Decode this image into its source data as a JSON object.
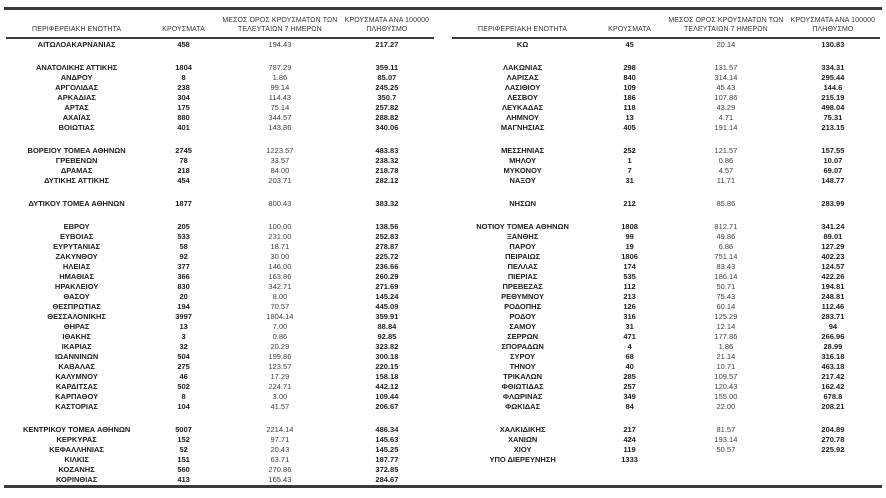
{
  "page": {
    "background": "#ffffff",
    "rule_color": "#3a3a3a",
    "bold_text_color": "#1e1e1e",
    "regular_text_color": "#3d3d3d"
  },
  "headers": [
    "ΠΕΡΙΦΕΡΕΙΑΚΗ ΕΝΟΤΗΤΑ",
    "ΚΡΟΥΣΜΑΤΑ",
    "ΜΕΣΟΣ ΟΡΟΣ ΚΡΟΥΣΜΑΤΩΝ ΤΩΝ ΤΕΛΕΥΤΑΙΩΝ 7 ΗΜΕΡΩΝ",
    "ΚΡΟΥΣΜΑΤΑ ΑΝΑ 100000 ΠΛΗΘΥΣΜΟ"
  ],
  "tables": [
    {
      "rows": [
        [
          "ΑΙΤΩΛΟΑΚΑΡΝΑΝΙΑΣ",
          "458",
          "194.43",
          "217.27"
        ],
        null,
        [
          "ΑΝΑΤΟΛΙΚΗΣ ΑΤΤΙΚΗΣ",
          "1804",
          "787.29",
          "359.11"
        ],
        [
          "ΑΝΔΡΟΥ",
          "8",
          "1.86",
          "85.07"
        ],
        [
          "ΑΡΓΟΛΙΔΑΣ",
          "238",
          "99.14",
          "245.25"
        ],
        [
          "ΑΡΚΑΔΙΑΣ",
          "304",
          "114.43",
          "350.7"
        ],
        [
          "ΑΡΤΑΣ",
          "175",
          "75.14",
          "257.82"
        ],
        [
          "ΑΧΑΪΑΣ",
          "880",
          "344.57",
          "288.82"
        ],
        [
          "ΒΟΙΩΤΙΑΣ",
          "401",
          "143.86",
          "340.06"
        ],
        null,
        [
          "ΒΟΡΕΙΟΥ ΤΟΜΕΑ ΑΘΗΝΩΝ",
          "2745",
          "1223.57",
          "483.83"
        ],
        [
          "ΓΡΕΒΕΝΩΝ",
          "78",
          "33.57",
          "238.32"
        ],
        [
          "ΔΡΑΜΑΣ",
          "218",
          "84.00",
          "218.78"
        ],
        [
          "ΔΥΤΙΚΗΣ ΑΤΤΙΚΗΣ",
          "454",
          "203.71",
          "282.12"
        ],
        null,
        [
          "ΔΥΤΙΚΟΥ ΤΟΜΕΑ ΑΘΗΝΩΝ",
          "1877",
          "800.43",
          "383.32"
        ],
        null,
        [
          "ΕΒΡΟΥ",
          "205",
          "100.00",
          "138.56"
        ],
        [
          "ΕΥΒΟΙΑΣ",
          "533",
          "231.00",
          "252.83"
        ],
        [
          "ΕΥΡΥΤΑΝΙΑΣ",
          "58",
          "18.71",
          "278.87"
        ],
        [
          "ΖΑΚΥΝΘΟΥ",
          "92",
          "30.00",
          "225.72"
        ],
        [
          "ΗΛΕΙΑΣ",
          "377",
          "146.00",
          "236.66"
        ],
        [
          "ΗΜΑΘΙΑΣ",
          "366",
          "163.86",
          "260.29"
        ],
        [
          "ΗΡΑΚΛΕΙΟΥ",
          "830",
          "342.71",
          "271.69"
        ],
        [
          "ΘΑΣΟΥ",
          "20",
          "8.00",
          "145.24"
        ],
        [
          "ΘΕΣΠΡΩΤΙΑΣ",
          "194",
          "70.57",
          "445.09"
        ],
        [
          "ΘΕΣΣΑΛΟΝΙΚΗΣ",
          "3997",
          "1804.14",
          "359.91"
        ],
        [
          "ΘΗΡΑΣ",
          "13",
          "7.00",
          "88.84"
        ],
        [
          "ΙΘΑΚΗΣ",
          "3",
          "0.86",
          "92.85"
        ],
        [
          "ΙΚΑΡΙΑΣ",
          "32",
          "20.29",
          "323.82"
        ],
        [
          "ΙΩΑΝΝΙΝΩΝ",
          "504",
          "199.86",
          "300.18"
        ],
        [
          "ΚΑΒΑΛΑΣ",
          "275",
          "123.57",
          "220.15"
        ],
        [
          "ΚΑΛΥΜΝΟΥ",
          "46",
          "17.29",
          "158.18"
        ],
        [
          "ΚΑΡΔΙΤΣΑΣ",
          "502",
          "224.71",
          "442.12"
        ],
        [
          "ΚΑΡΠΑΘΟΥ",
          "8",
          "3.00",
          "109.44"
        ],
        [
          "ΚΑΣΤΟΡΙΑΣ",
          "104",
          "41.57",
          "206.67"
        ],
        null,
        [
          "ΚΕΝΤΡΙΚΟΥ ΤΟΜΕΑ ΑΘΗΝΩΝ",
          "5007",
          "2214.14",
          "486.34"
        ],
        [
          "ΚΕΡΚΥΡΑΣ",
          "152",
          "97.71",
          "145.63"
        ],
        [
          "ΚΕΦΑΛΛΗΝΙΑΣ",
          "52",
          "20.43",
          "145.25"
        ],
        [
          "ΚΙΛΚΙΣ",
          "151",
          "63.71",
          "187.77"
        ],
        [
          "ΚΟΖΑΝΗΣ",
          "560",
          "270.86",
          "372.85"
        ],
        [
          "ΚΟΡΙΝΘΙΑΣ",
          "413",
          "165.43",
          "284.67"
        ]
      ]
    },
    {
      "rows": [
        [
          "ΚΩ",
          "45",
          "20.14",
          "130.83"
        ],
        null,
        [
          "ΛΑΚΩΝΙΑΣ",
          "298",
          "131.57",
          "334.31"
        ],
        [
          "ΛΑΡΙΣΑΣ",
          "840",
          "314.14",
          "295.44"
        ],
        [
          "ΛΑΣΙΘΙΟΥ",
          "109",
          "45.43",
          "144.6"
        ],
        [
          "ΛΕΣΒΟΥ",
          "186",
          "107.86",
          "215.19"
        ],
        [
          "ΛΕΥΚΑΔΑΣ",
          "118",
          "43.29",
          "498.04"
        ],
        [
          "ΛΗΜΝΟΥ",
          "13",
          "4.71",
          "75.31"
        ],
        [
          "ΜΑΓΝΗΣΙΑΣ",
          "405",
          "191.14",
          "213.15"
        ],
        null,
        [
          "ΜΕΣΣΗΝΙΑΣ",
          "252",
          "121.57",
          "157.55"
        ],
        [
          "ΜΗΛΟΥ",
          "1",
          "0.86",
          "10.07"
        ],
        [
          "ΜΥΚΟΝΟΥ",
          "7",
          "4.57",
          "69.07"
        ],
        [
          "ΝΑΞΟΥ",
          "31",
          "11.71",
          "148.77"
        ],
        null,
        [
          "ΝΗΣΩΝ",
          "212",
          "85.86",
          "283.99"
        ],
        null,
        [
          "ΝΟΤΙΟΥ ΤΟΜΕΑ ΑΘΗΝΩΝ",
          "1808",
          "812.71",
          "341.24"
        ],
        [
          "ΞΑΝΘΗΣ",
          "99",
          "49.86",
          "89.01"
        ],
        [
          "ΠΑΡΟΥ",
          "19",
          "6.86",
          "127.29"
        ],
        [
          "ΠΕΙΡΑΙΩΣ",
          "1806",
          "751.14",
          "402.23"
        ],
        [
          "ΠΕΛΛΑΣ",
          "174",
          "83.43",
          "124.57"
        ],
        [
          "ΠΙΕΡΙΑΣ",
          "535",
          "186.14",
          "422.26"
        ],
        [
          "ΠΡΕΒΕΖΑΣ",
          "112",
          "50.71",
          "194.81"
        ],
        [
          "ΡΕΘΥΜΝΟΥ",
          "213",
          "75.43",
          "248.81"
        ],
        [
          "ΡΟΔΟΠΗΣ",
          "126",
          "60.14",
          "112.46"
        ],
        [
          "ΡΟΔΟΥ",
          "316",
          "125.29",
          "283.71"
        ],
        [
          "ΣΑΜΟΥ",
          "31",
          "12.14",
          "94"
        ],
        [
          "ΣΕΡΡΩΝ",
          "471",
          "177.86",
          "266.96"
        ],
        [
          "ΣΠΟΡΑΔΩΝ",
          "4",
          "1.86",
          "28.99"
        ],
        [
          "ΣΥΡΟΥ",
          "68",
          "21.14",
          "316.18"
        ],
        [
          "ΤΗΝΟΥ",
          "40",
          "10.71",
          "463.18"
        ],
        [
          "ΤΡΙΚΑΛΩΝ",
          "285",
          "109.57",
          "217.42"
        ],
        [
          "ΦΘΙΩΤΙΔΑΣ",
          "257",
          "120.43",
          "162.42"
        ],
        [
          "ΦΛΩΡΙΝΑΣ",
          "349",
          "155.00",
          "678.8"
        ],
        [
          "ΦΩΚΙΔΑΣ",
          "84",
          "22.00",
          "208.21"
        ],
        null,
        [
          "ΧΑΛΚΙΔΙΚΗΣ",
          "217",
          "81.57",
          "204.89"
        ],
        [
          "ΧΑΝΙΩΝ",
          "424",
          "193.14",
          "270.78"
        ],
        [
          "ΧΙΟΥ",
          "119",
          "50.57",
          "225.92"
        ],
        [
          "ΥΠΟ ΔΙΕΡΕΥΝΗΣΗ",
          "1333",
          "",
          ""
        ]
      ]
    }
  ]
}
